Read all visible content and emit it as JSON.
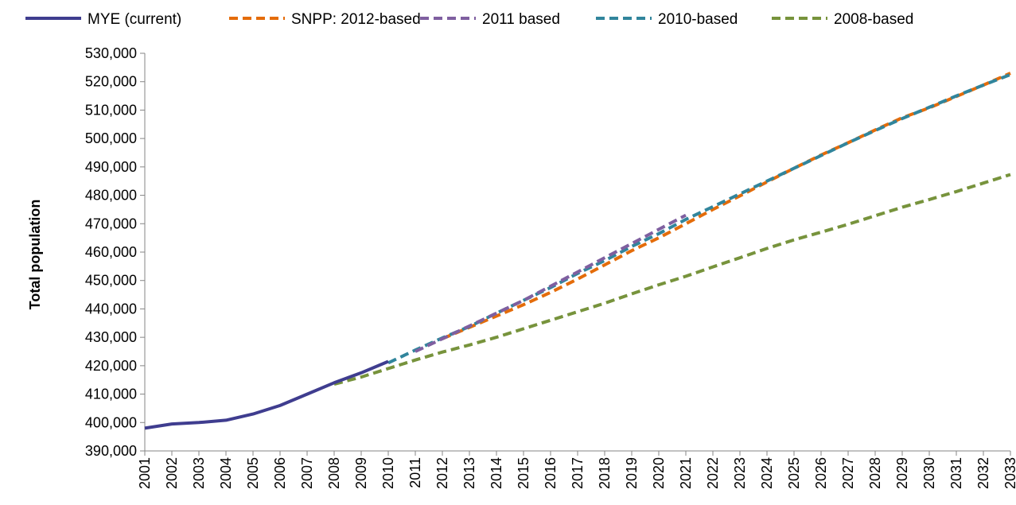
{
  "chart_data": {
    "type": "line",
    "title": "",
    "xlabel": "",
    "ylabel": "Total population",
    "ylim": [
      390000,
      530000
    ],
    "ytick_step": 10000,
    "y_ticks": [
      "390,000",
      "400,000",
      "410,000",
      "420,000",
      "430,000",
      "440,000",
      "450,000",
      "460,000",
      "470,000",
      "480,000",
      "490,000",
      "500,000",
      "510,000",
      "520,000",
      "530,000"
    ],
    "x_ticks": [
      "2001",
      "2002",
      "2003",
      "2004",
      "2005",
      "2006",
      "2007",
      "2008",
      "2009",
      "2010",
      "2011",
      "2012",
      "2013",
      "2014",
      "2015",
      "2016",
      "2017",
      "2018",
      "2019",
      "2020",
      "2021",
      "2022",
      "2023",
      "2024",
      "2025",
      "2026",
      "2027",
      "2028",
      "2029",
      "2030",
      "2031",
      "2032",
      "2033"
    ],
    "xlim": [
      2001,
      2033
    ],
    "grid": false,
    "legend_position": "top",
    "series": [
      {
        "name": "MYE (current)",
        "color": "#3F3D8F",
        "style": "solid",
        "points": [
          [
            2001,
            398000
          ],
          [
            2002,
            399500
          ],
          [
            2003,
            400000
          ],
          [
            2004,
            400800
          ],
          [
            2005,
            403000
          ],
          [
            2006,
            406000
          ],
          [
            2007,
            410000
          ],
          [
            2008,
            414000
          ],
          [
            2009,
            417500
          ],
          [
            2010,
            421500
          ]
        ]
      },
      {
        "name": "SNPP: 2012-based",
        "color": "#E46C0A",
        "style": "dashed",
        "points": [
          [
            2012,
            429500
          ],
          [
            2013,
            433500
          ],
          [
            2014,
            437500
          ],
          [
            2015,
            441500
          ],
          [
            2016,
            445800
          ],
          [
            2017,
            450500
          ],
          [
            2018,
            455500
          ],
          [
            2019,
            460500
          ],
          [
            2020,
            465000
          ],
          [
            2021,
            470000
          ],
          [
            2022,
            475000
          ],
          [
            2023,
            479800
          ],
          [
            2024,
            484700
          ],
          [
            2025,
            489500
          ],
          [
            2026,
            494200
          ],
          [
            2027,
            498500
          ],
          [
            2028,
            503000
          ],
          [
            2029,
            507300
          ],
          [
            2030,
            510800
          ],
          [
            2031,
            514800
          ],
          [
            2032,
            518800
          ],
          [
            2033,
            523000
          ]
        ]
      },
      {
        "name": "2011 based",
        "color": "#7F5FA0",
        "style": "dashed",
        "points": [
          [
            2011,
            425000
          ],
          [
            2012,
            429500
          ],
          [
            2013,
            434000
          ],
          [
            2014,
            438500
          ],
          [
            2015,
            443000
          ],
          [
            2016,
            448000
          ],
          [
            2017,
            453000
          ],
          [
            2018,
            458000
          ],
          [
            2019,
            463000
          ],
          [
            2020,
            468000
          ],
          [
            2021,
            473000
          ]
        ]
      },
      {
        "name": "2010-based",
        "color": "#31859C",
        "style": "dashed",
        "points": [
          [
            2010,
            421000
          ],
          [
            2011,
            425500
          ],
          [
            2012,
            429800
          ],
          [
            2013,
            433800
          ],
          [
            2014,
            438500
          ],
          [
            2015,
            443000
          ],
          [
            2016,
            447500
          ],
          [
            2017,
            452500
          ],
          [
            2018,
            457000
          ],
          [
            2019,
            462000
          ],
          [
            2020,
            466500
          ],
          [
            2021,
            471500
          ],
          [
            2022,
            476000
          ],
          [
            2023,
            480500
          ],
          [
            2024,
            485000
          ],
          [
            2025,
            489500
          ],
          [
            2026,
            494000
          ],
          [
            2027,
            498500
          ],
          [
            2028,
            502800
          ],
          [
            2029,
            507000
          ],
          [
            2030,
            511000
          ],
          [
            2031,
            515000
          ],
          [
            2032,
            518800
          ],
          [
            2033,
            522500
          ]
        ]
      },
      {
        "name": "2008-based",
        "color": "#77933C",
        "style": "dashed",
        "points": [
          [
            2008,
            413500
          ],
          [
            2009,
            416000
          ],
          [
            2010,
            419000
          ],
          [
            2011,
            422000
          ],
          [
            2012,
            424800
          ],
          [
            2013,
            427300
          ],
          [
            2014,
            430000
          ],
          [
            2015,
            433000
          ],
          [
            2016,
            436000
          ],
          [
            2017,
            439000
          ],
          [
            2018,
            442000
          ],
          [
            2019,
            445300
          ],
          [
            2020,
            448500
          ],
          [
            2021,
            451500
          ],
          [
            2022,
            454800
          ],
          [
            2023,
            458000
          ],
          [
            2024,
            461300
          ],
          [
            2025,
            464300
          ],
          [
            2026,
            467000
          ],
          [
            2027,
            469800
          ],
          [
            2028,
            472800
          ],
          [
            2029,
            475800
          ],
          [
            2030,
            478500
          ],
          [
            2031,
            481300
          ],
          [
            2032,
            484300
          ],
          [
            2033,
            487300
          ]
        ]
      }
    ]
  }
}
